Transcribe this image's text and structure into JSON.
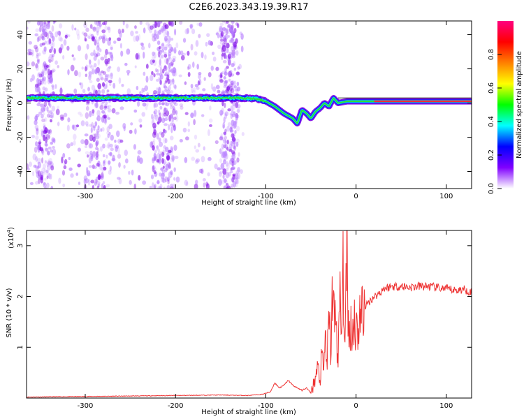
{
  "title": "C2E6.2023.343.19.39.R17",
  "chart_data": [
    {
      "type": "heatmap",
      "xlabel": "Height of straight line (km)",
      "ylabel": "Frequency (Hz)",
      "xlim": [
        -365,
        128
      ],
      "ylim": [
        -50,
        48
      ],
      "x_ticks": [
        -300,
        -200,
        -100,
        0,
        100
      ],
      "y_ticks": [
        -40,
        -20,
        0,
        20,
        40
      ],
      "colorbar": {
        "label": "Normalized spectral amplitude",
        "range": [
          0,
          1
        ],
        "ticks": [
          "0.0",
          "0.2",
          "0.4",
          "0.6",
          "0.8"
        ],
        "colors": [
          "#ffffff",
          "#8000ff",
          "#0000ff",
          "#00ffff",
          "#00ff00",
          "#ffff00",
          "#ff8000",
          "#ff0000",
          "#ff0080"
        ]
      },
      "ridge": {
        "x": [
          -365,
          -300,
          -200,
          -130,
          -110,
          -100,
          -90,
          -80,
          -70,
          -65,
          -60,
          -55,
          -50,
          -45,
          -40,
          -35,
          -30,
          -25,
          -20,
          -10,
          0,
          20,
          40,
          60,
          80,
          100,
          128
        ],
        "y": [
          3,
          3,
          3,
          3,
          2.5,
          1,
          -2,
          -6,
          -9,
          -12,
          -4,
          -6,
          -9,
          -5,
          -3,
          0,
          -2,
          3,
          0,
          1,
          1,
          1,
          1,
          1,
          1,
          1,
          1
        ]
      }
    },
    {
      "type": "line",
      "xlabel": "Height of straight line (km)",
      "ylabel": "SNR (10 * v/v)",
      "y_multiplier": "(x10",
      "y_exponent": "4",
      "y_multiplier_close": ")",
      "xlim": [
        -365,
        128
      ],
      "ylim": [
        0,
        3.3
      ],
      "x_ticks": [
        -300,
        -200,
        -100,
        0,
        100
      ],
      "y_ticks": [
        1,
        2,
        3
      ],
      "series": [
        {
          "name": "SNR",
          "color": "#ee3333",
          "x": [
            -365,
            -300,
            -250,
            -200,
            -150,
            -120,
            -105,
            -95,
            -90,
            -85,
            -80,
            -75,
            -70,
            -60,
            -55,
            -50,
            -45,
            -42,
            -40,
            -38,
            -36,
            -34,
            -32,
            -30,
            -28,
            -26,
            -24,
            -22,
            -20,
            -18,
            -16,
            -14,
            -12,
            -10,
            -8,
            -6,
            -4,
            -2,
            0,
            5,
            10,
            15,
            20,
            25,
            30,
            40,
            50,
            60,
            70,
            80,
            90,
            100,
            110,
            120,
            128
          ],
          "y": [
            0.02,
            0.03,
            0.04,
            0.05,
            0.06,
            0.05,
            0.07,
            0.12,
            0.3,
            0.2,
            0.25,
            0.35,
            0.25,
            0.15,
            0.2,
            0.1,
            0.4,
            0.6,
            0.3,
            0.8,
            0.5,
            1.2,
            0.7,
            1.5,
            0.9,
            2.2,
            1.4,
            1.8,
            0.5,
            2.0,
            1.2,
            2.6,
            0.8,
            3.3,
            1.0,
            1.6,
            1.2,
            1.7,
            1.3,
            1.6,
            1.8,
            1.9,
            2.0,
            2.05,
            2.15,
            2.2,
            2.2,
            2.18,
            2.2,
            2.2,
            2.17,
            2.15,
            2.12,
            2.14,
            2.08
          ]
        }
      ]
    }
  ]
}
